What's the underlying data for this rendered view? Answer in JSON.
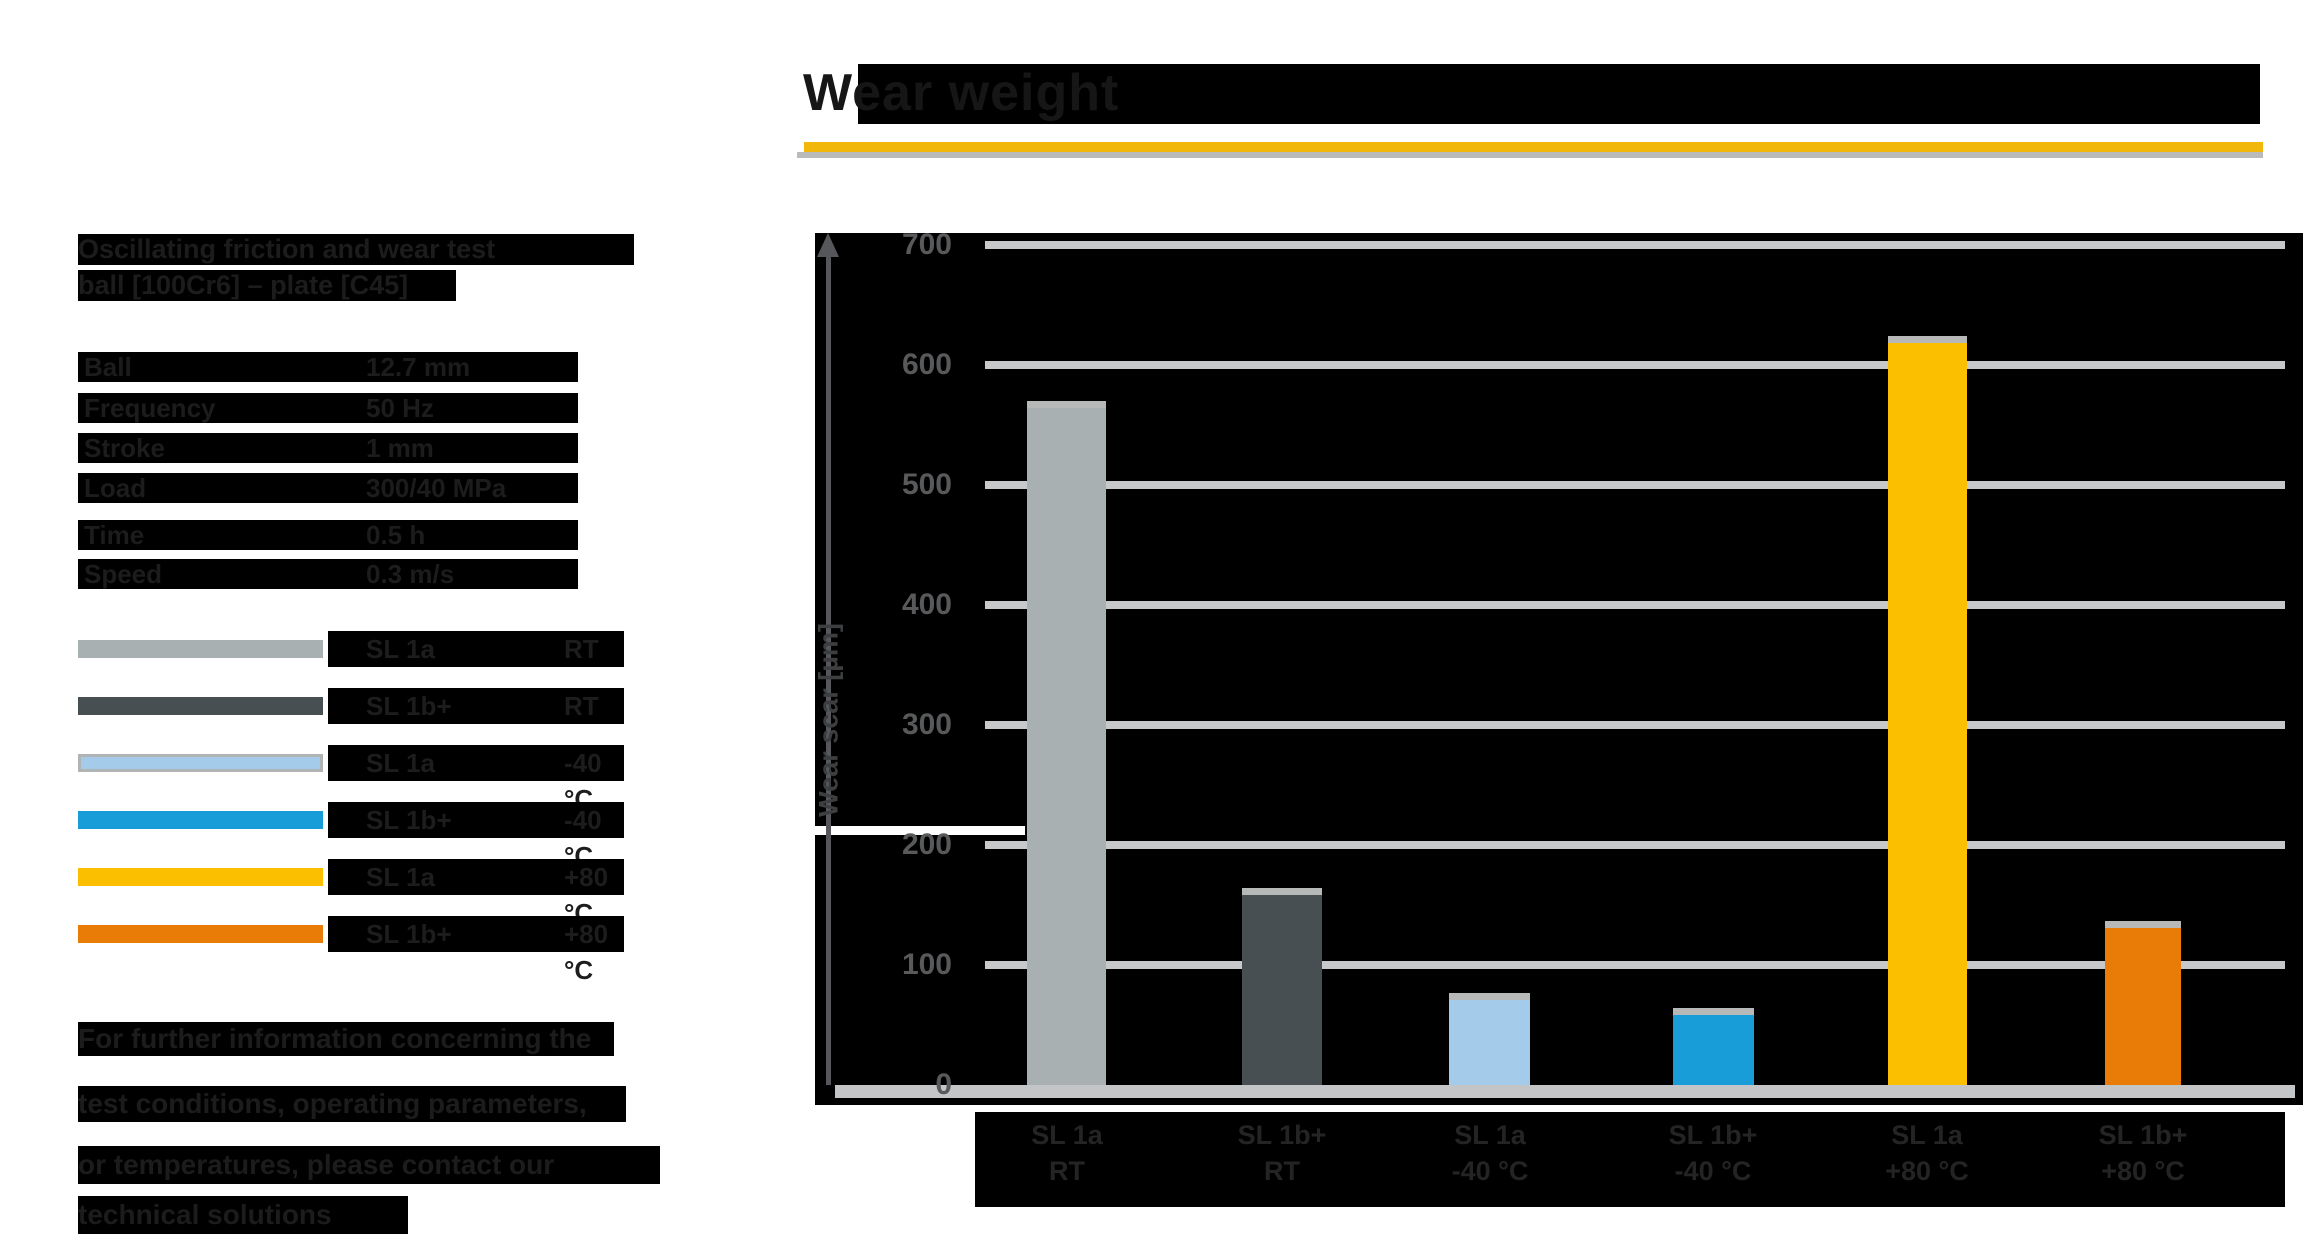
{
  "title": "Wear weight",
  "accent": {
    "underline_yellow": "#f1b70a",
    "underline_gray": "#b9bbba"
  },
  "header_block": {
    "line1": "Oscillating friction and wear test",
    "line2": "ball [100Cr6] – plate [C45]"
  },
  "parameters": [
    {
      "label": "Ball",
      "value": "12.7 mm"
    },
    {
      "label": "Frequency",
      "value": "50 Hz"
    },
    {
      "label": "Stroke",
      "value": "1 mm"
    },
    {
      "label": "Load",
      "value": "300/40 MPa"
    },
    {
      "label": "Time",
      "value": "0.5 h"
    },
    {
      "label": "Speed",
      "value": "0.3 m/s"
    }
  ],
  "legend": [
    {
      "name": "SL 1a",
      "temp": "RT",
      "color": "#a9b0b1"
    },
    {
      "name": "SL 1b+",
      "temp": "RT",
      "color": "#484f52"
    },
    {
      "name": "SL 1a",
      "temp": "-40 °C",
      "color": "#a5cbeb"
    },
    {
      "name": "SL 1b+",
      "temp": "-40 °C",
      "color": "#199dd9"
    },
    {
      "name": "SL 1a",
      "temp": "+80 °C",
      "color": "#fcbf00"
    },
    {
      "name": "SL 1b+",
      "temp": "+80 °C",
      "color": "#e97b07"
    }
  ],
  "footer_lines": [
    "For further information concerning the",
    "test conditions, operating parameters,",
    "or temperatures, please contact our",
    "technical solutions"
  ],
  "chart_data": {
    "type": "bar",
    "title": "Wear weight",
    "xlabel": "",
    "ylabel": "Wear scar [µm]",
    "ylim": [
      0,
      700
    ],
    "ytick_labels": [
      "700",
      "600",
      "500",
      "400",
      "300",
      "200",
      "100",
      "0"
    ],
    "grid": true,
    "legend_position": "left",
    "categories": [
      {
        "line1": "SL 1a",
        "line2": "RT"
      },
      {
        "line1": "SL 1b+",
        "line2": "RT"
      },
      {
        "line1": "SL 1a",
        "line2": "-40 °C"
      },
      {
        "line1": "SL 1b+",
        "line2": "-40 °C"
      },
      {
        "line1": "SL 1a",
        "line2": "+80 °C"
      },
      {
        "line1": "SL 1b+",
        "line2": "+80 °C"
      }
    ],
    "values": [
      570,
      164,
      77,
      64,
      624,
      137
    ],
    "colors": [
      "#a9b0b1",
      "#484f52",
      "#a5cbeb",
      "#199dd9",
      "#fcbf00",
      "#e97b07"
    ],
    "bar_cap_color": "#b6b9b8"
  }
}
